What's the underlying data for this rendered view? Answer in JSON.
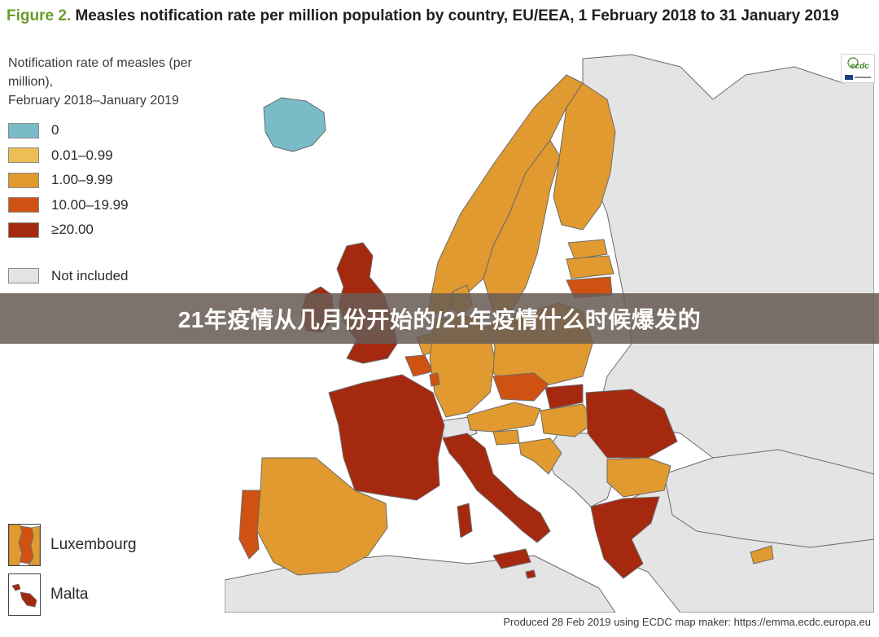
{
  "figure": {
    "label": "Figure 2.",
    "title": "Measles notification rate per million population by country, EU/EEA, 1 February 2018 to 31 January 2019"
  },
  "legend": {
    "title_line1": "Notification rate of measles (per million),",
    "title_line2": "February 2018–January 2019",
    "items": [
      {
        "label": "0",
        "color": "#79bcc8"
      },
      {
        "label": "0.01–0.99",
        "color": "#ecbf55"
      },
      {
        "label": "1.00–9.99",
        "color": "#e09a2f"
      },
      {
        "label": "10.00–19.99",
        "color": "#cf5212"
      },
      {
        "label": "≥20.00",
        "color": "#a5290f"
      },
      {
        "label": "Not included",
        "color": "#e4e4e4"
      }
    ]
  },
  "insets": [
    {
      "label": "Luxembourg",
      "color": "#cf5212"
    },
    {
      "label": "Malta",
      "color": "#a5290f"
    }
  ],
  "logo": {
    "text": "ecdc"
  },
  "footer": "Produced 28 Feb 2019 using ECDC map maker: https://emma.ecdc.europa.eu",
  "banner": "21年疫情从几月份开始的/21年疫情什么时候爆发的",
  "map": {
    "sea_color": "#ffffff",
    "outline_color": "#6b6b6b",
    "countries": [
      {
        "name": "Iceland",
        "category": "0"
      },
      {
        "name": "Ireland",
        "category": ">=20.00"
      },
      {
        "name": "United Kingdom",
        "category": ">=20.00"
      },
      {
        "name": "Norway",
        "category": "1.00-9.99"
      },
      {
        "name": "Sweden",
        "category": "1.00-9.99"
      },
      {
        "name": "Finland",
        "category": "1.00-9.99"
      },
      {
        "name": "Estonia",
        "category": "1.00-9.99"
      },
      {
        "name": "Latvia",
        "category": "1.00-9.99"
      },
      {
        "name": "Lithuania",
        "category": "10.00-19.99"
      },
      {
        "name": "Denmark",
        "category": "1.00-9.99"
      },
      {
        "name": "Netherlands",
        "category": "1.00-9.99"
      },
      {
        "name": "Belgium",
        "category": "10.00-19.99"
      },
      {
        "name": "Germany",
        "category": "1.00-9.99"
      },
      {
        "name": "Poland",
        "category": "1.00-9.99"
      },
      {
        "name": "Czechia",
        "category": "10.00-19.99"
      },
      {
        "name": "Slovakia",
        "category": ">=20.00"
      },
      {
        "name": "Austria",
        "category": "1.00-9.99"
      },
      {
        "name": "Hungary",
        "category": "1.00-9.99"
      },
      {
        "name": "France",
        "category": ">=20.00"
      },
      {
        "name": "Spain",
        "category": "1.00-9.99"
      },
      {
        "name": "Portugal",
        "category": "10.00-19.99"
      },
      {
        "name": "Italy",
        "category": ">=20.00"
      },
      {
        "name": "Slovenia",
        "category": "1.00-9.99"
      },
      {
        "name": "Croatia",
        "category": "1.00-9.99"
      },
      {
        "name": "Romania",
        "category": ">=20.00"
      },
      {
        "name": "Bulgaria",
        "category": "1.00-9.99"
      },
      {
        "name": "Greece",
        "category": ">=20.00"
      },
      {
        "name": "Cyprus",
        "category": "1.00-9.99"
      },
      {
        "name": "Malta",
        "category": ">=20.00"
      },
      {
        "name": "Luxembourg",
        "category": "10.00-19.99"
      }
    ]
  }
}
